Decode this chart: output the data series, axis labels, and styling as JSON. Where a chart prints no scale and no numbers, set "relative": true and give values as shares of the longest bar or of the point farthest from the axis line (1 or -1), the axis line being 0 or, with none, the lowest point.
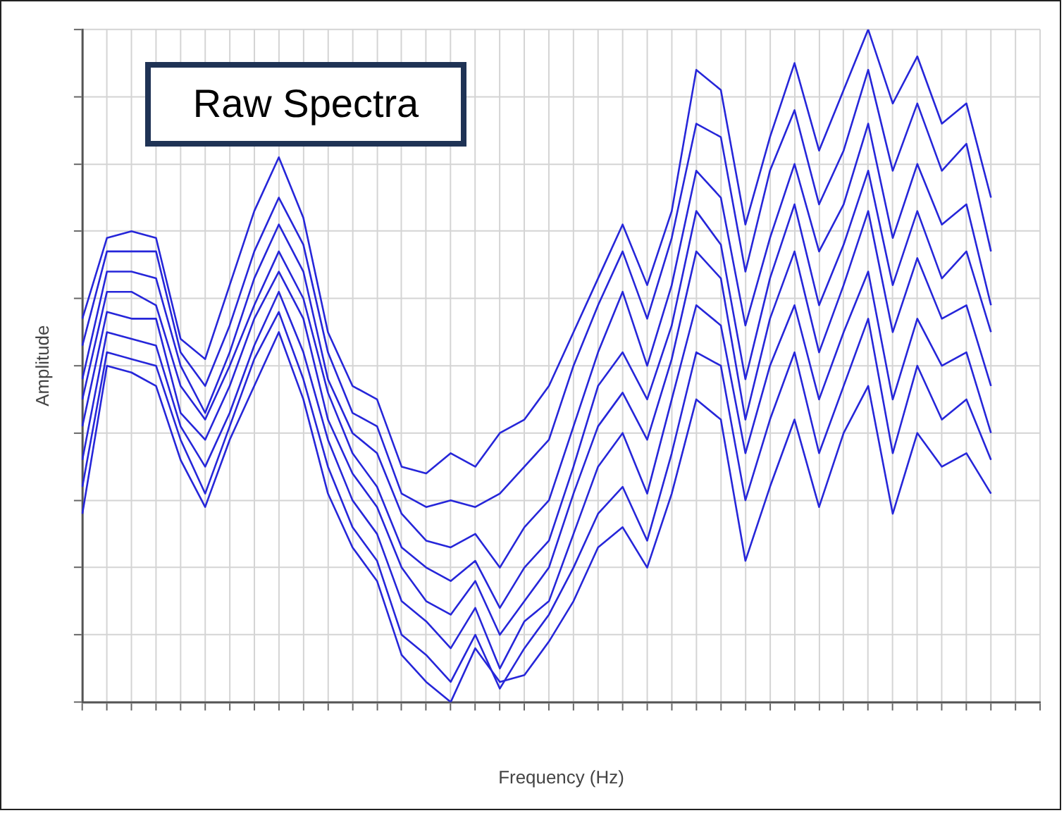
{
  "chart_data": {
    "type": "line",
    "title": "Raw Spectra",
    "xlabel": "Frequency (Hz)",
    "ylabel": "Amplitude",
    "relative": true,
    "grid": true,
    "legend": false,
    "marker": "none",
    "line_style": "solid",
    "categories": [
      null,
      null,
      null,
      null,
      null,
      null,
      null,
      null,
      null,
      null,
      null,
      null,
      null,
      null,
      null,
      null,
      null,
      null,
      null,
      null,
      null,
      null,
      null,
      null,
      null,
      null,
      null,
      null,
      null,
      null,
      null,
      null,
      null,
      null,
      null,
      null,
      null,
      null,
      null,
      null
    ],
    "series": [
      {
        "color": "#2626d9",
        "values": [
          0.57,
          0.69,
          0.7,
          0.69,
          0.54,
          0.51,
          0.62,
          0.73,
          0.81,
          0.72,
          0.55,
          0.47,
          0.45,
          0.35,
          0.34,
          0.37,
          0.35,
          0.4,
          0.42,
          0.47,
          0.55,
          0.63,
          0.71,
          0.62,
          0.73,
          0.94,
          0.91,
          0.71,
          0.84,
          0.95,
          0.82,
          0.91,
          1.0,
          0.89,
          0.96,
          0.86,
          0.89,
          0.75,
          null,
          null
        ]
      },
      {
        "color": "#2626d9",
        "values": [
          0.53,
          0.67,
          0.67,
          0.67,
          0.52,
          0.47,
          0.56,
          0.67,
          0.75,
          0.68,
          0.52,
          0.43,
          0.41,
          0.31,
          0.29,
          0.3,
          0.29,
          0.31,
          0.35,
          0.39,
          0.5,
          0.59,
          0.67,
          0.57,
          0.69,
          0.86,
          0.84,
          0.64,
          0.79,
          0.88,
          0.74,
          0.82,
          0.94,
          0.79,
          0.89,
          0.79,
          0.83,
          0.67,
          null,
          null
        ]
      },
      {
        "color": "#2626d9",
        "values": [
          0.48,
          0.64,
          0.64,
          0.63,
          0.5,
          0.43,
          0.52,
          0.63,
          0.71,
          0.64,
          0.48,
          0.4,
          0.37,
          0.28,
          0.24,
          0.23,
          0.25,
          0.2,
          0.26,
          0.3,
          0.41,
          0.52,
          0.61,
          0.5,
          0.62,
          0.79,
          0.75,
          0.56,
          0.69,
          0.8,
          0.67,
          0.74,
          0.86,
          0.69,
          0.8,
          0.71,
          0.74,
          0.59,
          null,
          null
        ]
      },
      {
        "color": "#2626d9",
        "values": [
          0.45,
          0.61,
          0.61,
          0.59,
          0.47,
          0.42,
          0.5,
          0.59,
          0.67,
          0.6,
          0.46,
          0.37,
          0.32,
          0.23,
          0.2,
          0.18,
          0.21,
          0.14,
          0.2,
          0.24,
          0.35,
          0.47,
          0.52,
          0.45,
          0.56,
          0.73,
          0.68,
          0.48,
          0.63,
          0.74,
          0.59,
          0.68,
          0.79,
          0.62,
          0.73,
          0.63,
          0.67,
          0.55,
          null,
          null
        ]
      },
      {
        "color": "#2626d9",
        "values": [
          0.41,
          0.58,
          0.57,
          0.57,
          0.43,
          0.39,
          0.47,
          0.57,
          0.64,
          0.57,
          0.42,
          0.34,
          0.29,
          0.2,
          0.15,
          0.13,
          0.18,
          0.1,
          0.15,
          0.2,
          0.31,
          0.41,
          0.46,
          0.39,
          0.51,
          0.67,
          0.63,
          0.42,
          0.57,
          0.67,
          0.52,
          0.62,
          0.73,
          0.55,
          0.66,
          0.57,
          0.59,
          0.47,
          null,
          null
        ]
      },
      {
        "color": "#2626d9",
        "values": [
          0.36,
          0.55,
          0.54,
          0.53,
          0.41,
          0.35,
          0.43,
          0.53,
          0.61,
          0.52,
          0.39,
          0.3,
          0.25,
          0.15,
          0.12,
          0.08,
          0.14,
          0.05,
          0.12,
          0.15,
          0.25,
          0.35,
          0.4,
          0.31,
          0.45,
          0.59,
          0.56,
          0.37,
          0.5,
          0.59,
          0.45,
          0.55,
          0.64,
          0.45,
          0.57,
          0.5,
          0.52,
          0.4,
          null,
          null
        ]
      },
      {
        "color": "#2626d9",
        "values": [
          0.32,
          0.52,
          0.51,
          0.5,
          0.39,
          0.31,
          0.41,
          0.51,
          0.58,
          0.48,
          0.35,
          0.26,
          0.21,
          0.1,
          0.07,
          0.03,
          0.1,
          0.02,
          0.08,
          0.13,
          0.2,
          0.28,
          0.32,
          0.24,
          0.37,
          0.52,
          0.5,
          0.3,
          0.42,
          0.52,
          0.37,
          0.47,
          0.57,
          0.37,
          0.5,
          0.42,
          0.45,
          0.36,
          null,
          null
        ]
      },
      {
        "color": "#2626d9",
        "values": [
          0.28,
          0.5,
          0.49,
          0.47,
          0.36,
          0.29,
          0.39,
          0.47,
          0.55,
          0.45,
          0.31,
          0.23,
          0.18,
          0.07,
          0.03,
          0.0,
          0.08,
          0.03,
          0.04,
          0.09,
          0.15,
          0.23,
          0.26,
          0.2,
          0.31,
          0.45,
          0.42,
          0.21,
          0.32,
          0.42,
          0.29,
          0.4,
          0.47,
          0.28,
          0.4,
          0.35,
          0.37,
          0.31,
          null,
          null
        ]
      }
    ]
  }
}
